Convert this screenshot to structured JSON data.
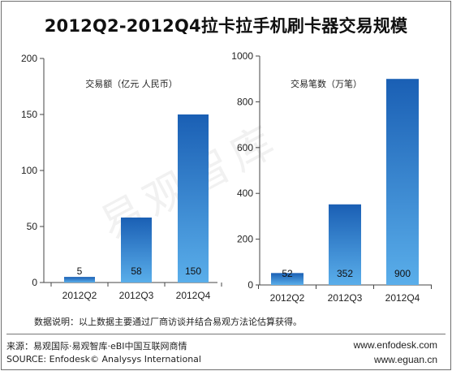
{
  "title": "2012Q2-2012Q4拉卡拉手机刷卡器交易规模",
  "watermark": "易观智库",
  "colors": {
    "bar_top": "#1a5fb4",
    "bar_bottom": "#56a8e6",
    "axis": "#444444",
    "background": "#ffffff"
  },
  "chart_data": [
    {
      "type": "bar",
      "unit_label": "交易额（亿元 人民币）",
      "categories": [
        "2012Q2",
        "2012Q3",
        "2012Q4"
      ],
      "values": [
        5,
        58,
        150
      ],
      "value_labels": [
        "5",
        "58",
        "150"
      ],
      "ylim": [
        0,
        200
      ],
      "yticks": [
        "0",
        "50",
        "100",
        "150",
        "200"
      ],
      "tick_values": [
        0,
        50,
        100,
        150,
        200
      ]
    },
    {
      "type": "bar",
      "unit_label": "交易笔数（万笔）",
      "categories": [
        "2012Q2",
        "2012Q3",
        "2012Q4"
      ],
      "values": [
        52,
        352,
        900
      ],
      "value_labels": [
        "52",
        "352",
        "900"
      ],
      "ylim": [
        0,
        1000
      ],
      "yticks": [
        "0",
        "200",
        "400",
        "600",
        "800",
        "1000"
      ],
      "tick_values": [
        0,
        200,
        400,
        600,
        800,
        1000
      ]
    }
  ],
  "note": "数据说明：以上数据主要通过厂商访谈并结合易观方法论估算获得。",
  "source_cn": "来源：易观国际·易观智库·eBI中国互联网商情",
  "source_en": "SOURCE: Enfodesk© Analysys International",
  "url1": "www.enfodesk.com",
  "url2": "www.eguan.cn"
}
